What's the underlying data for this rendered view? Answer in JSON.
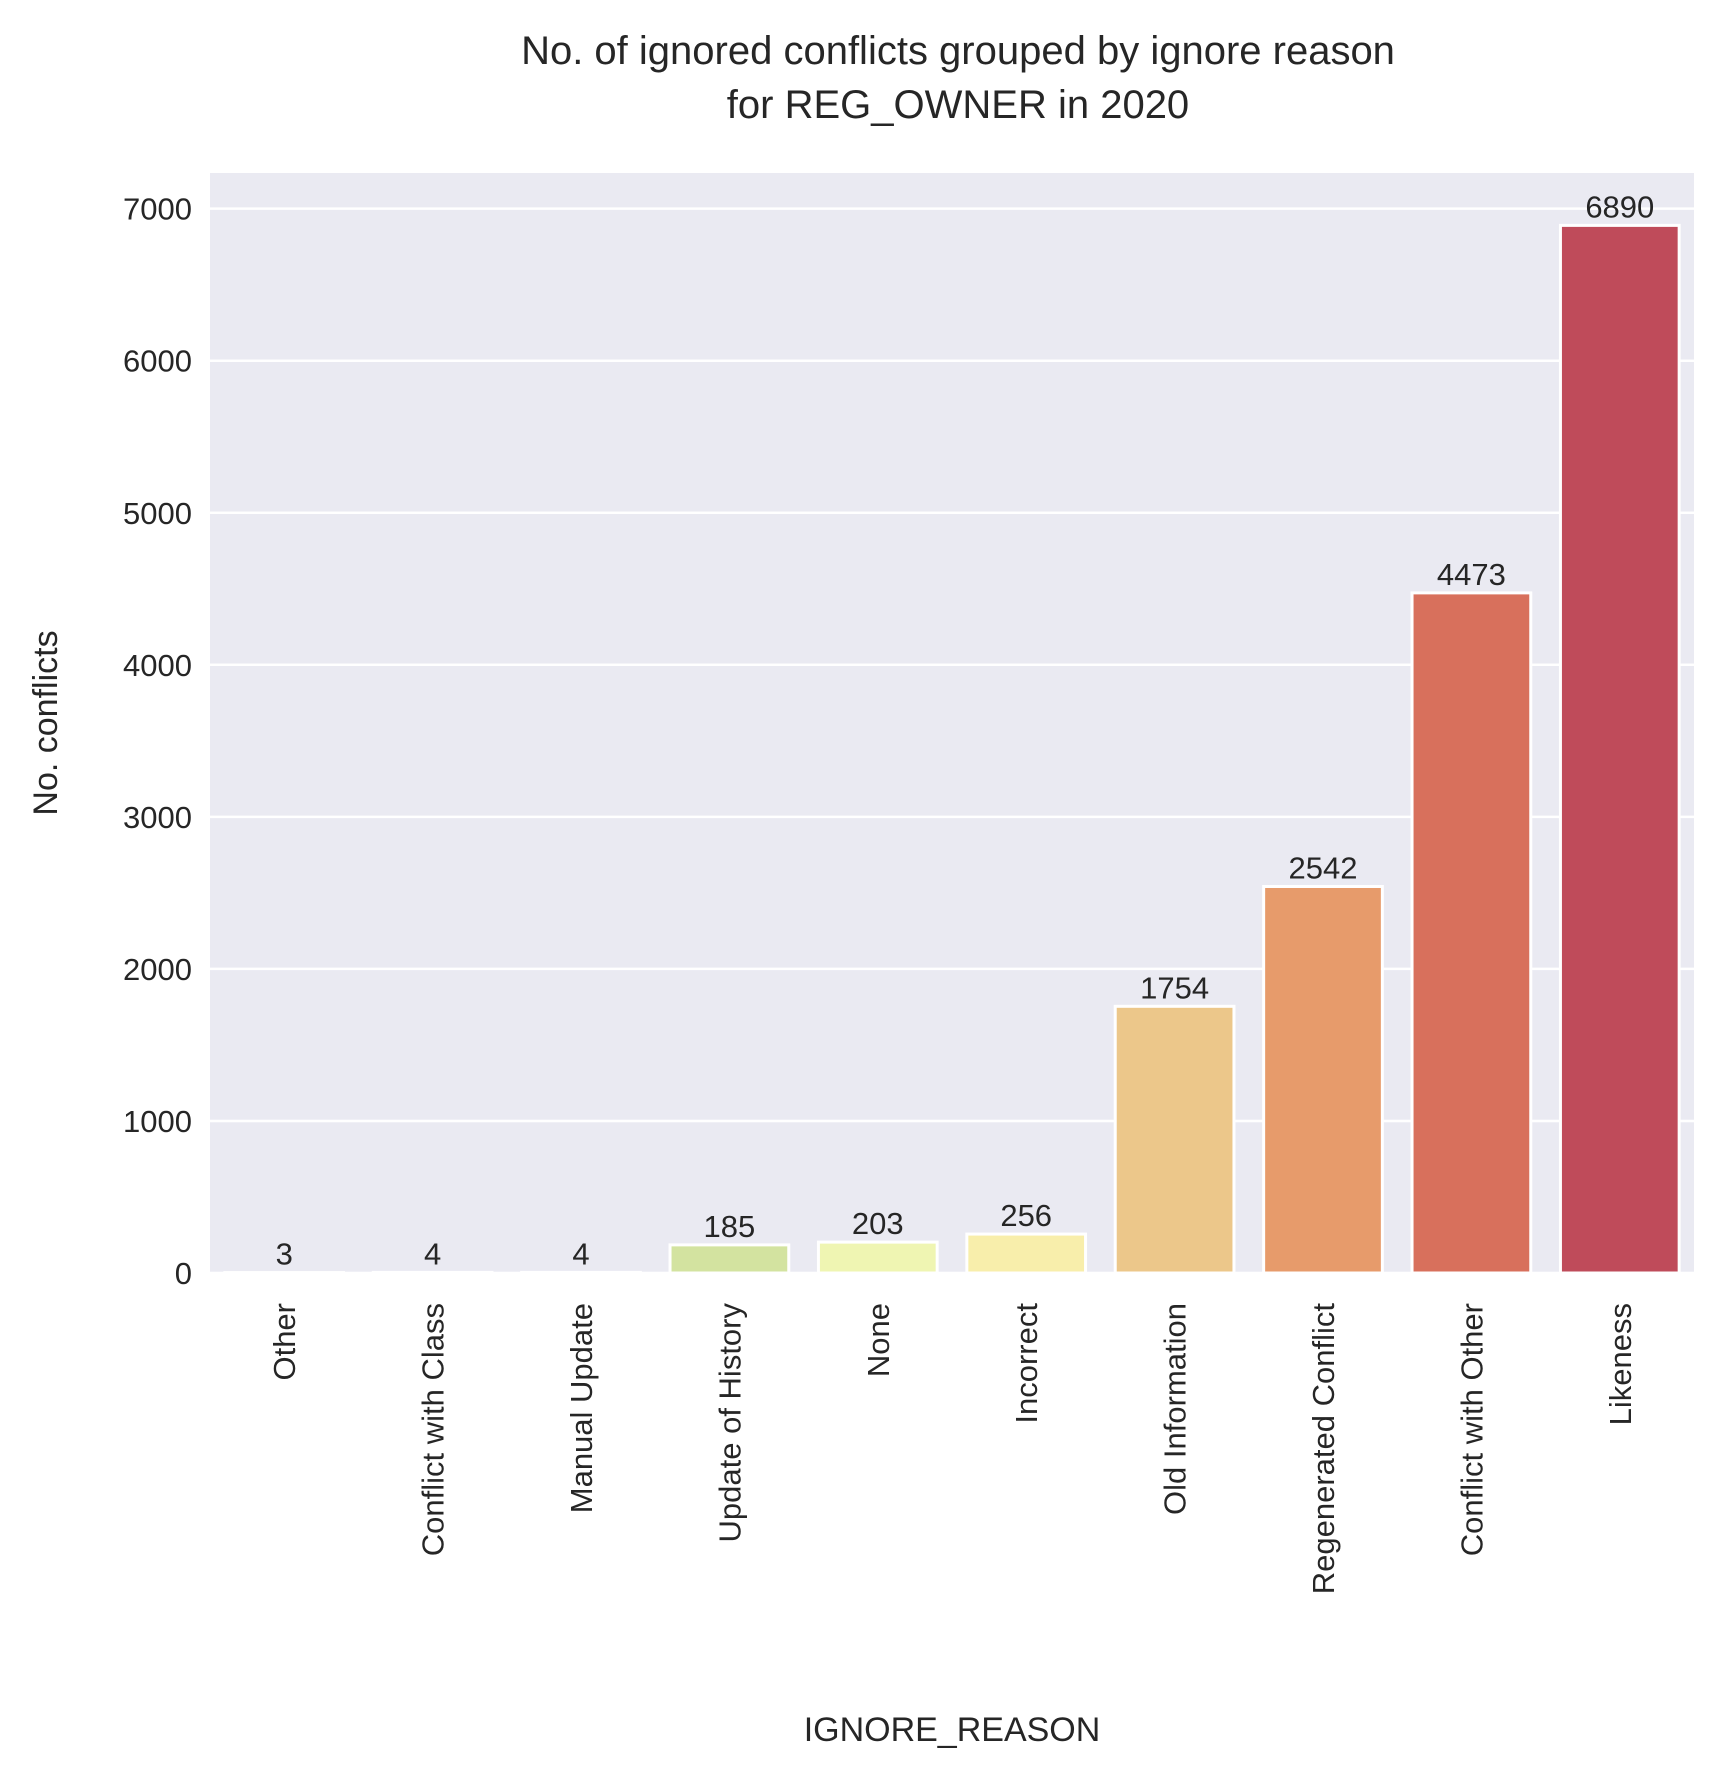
{
  "chart_data": {
    "type": "bar",
    "title_lines": [
      "No. of ignored conflicts grouped by ignore reason",
      "for REG_OWNER in 2020"
    ],
    "xlabel": "IGNORE_REASON",
    "ylabel": "No. conflicts",
    "categories": [
      "Other",
      "Conflict with Class",
      "Manual Update",
      "Update of History",
      "None",
      "Incorrect",
      "Old Information",
      "Regenerated Conflict",
      "Conflict with Other",
      "Likeness"
    ],
    "values": [
      3,
      4,
      4,
      185,
      203,
      256,
      1754,
      2542,
      4473,
      6890
    ],
    "data_labels": [
      "3",
      "4",
      "4",
      "185",
      "203",
      "256",
      "1754",
      "2542",
      "4473",
      "6890"
    ],
    "yticks": [
      0,
      1000,
      2000,
      3000,
      4000,
      5000,
      6000,
      7000
    ],
    "ytick_labels": [
      "0",
      "1000",
      "2000",
      "3000",
      "4000",
      "5000",
      "6000",
      "7000"
    ],
    "ylim": [
      0,
      7234.5
    ],
    "grid": true,
    "colors": [
      "#d7ecf1",
      "#dbeeee",
      "#dbeeee",
      "#d3e3a0",
      "#eff5b2",
      "#f8eeab",
      "#ecc78a",
      "#e79b6b",
      "#d8705c",
      "#bf4b5a"
    ],
    "background_color": "#eaeaf2",
    "grid_color": "#ffffff"
  }
}
